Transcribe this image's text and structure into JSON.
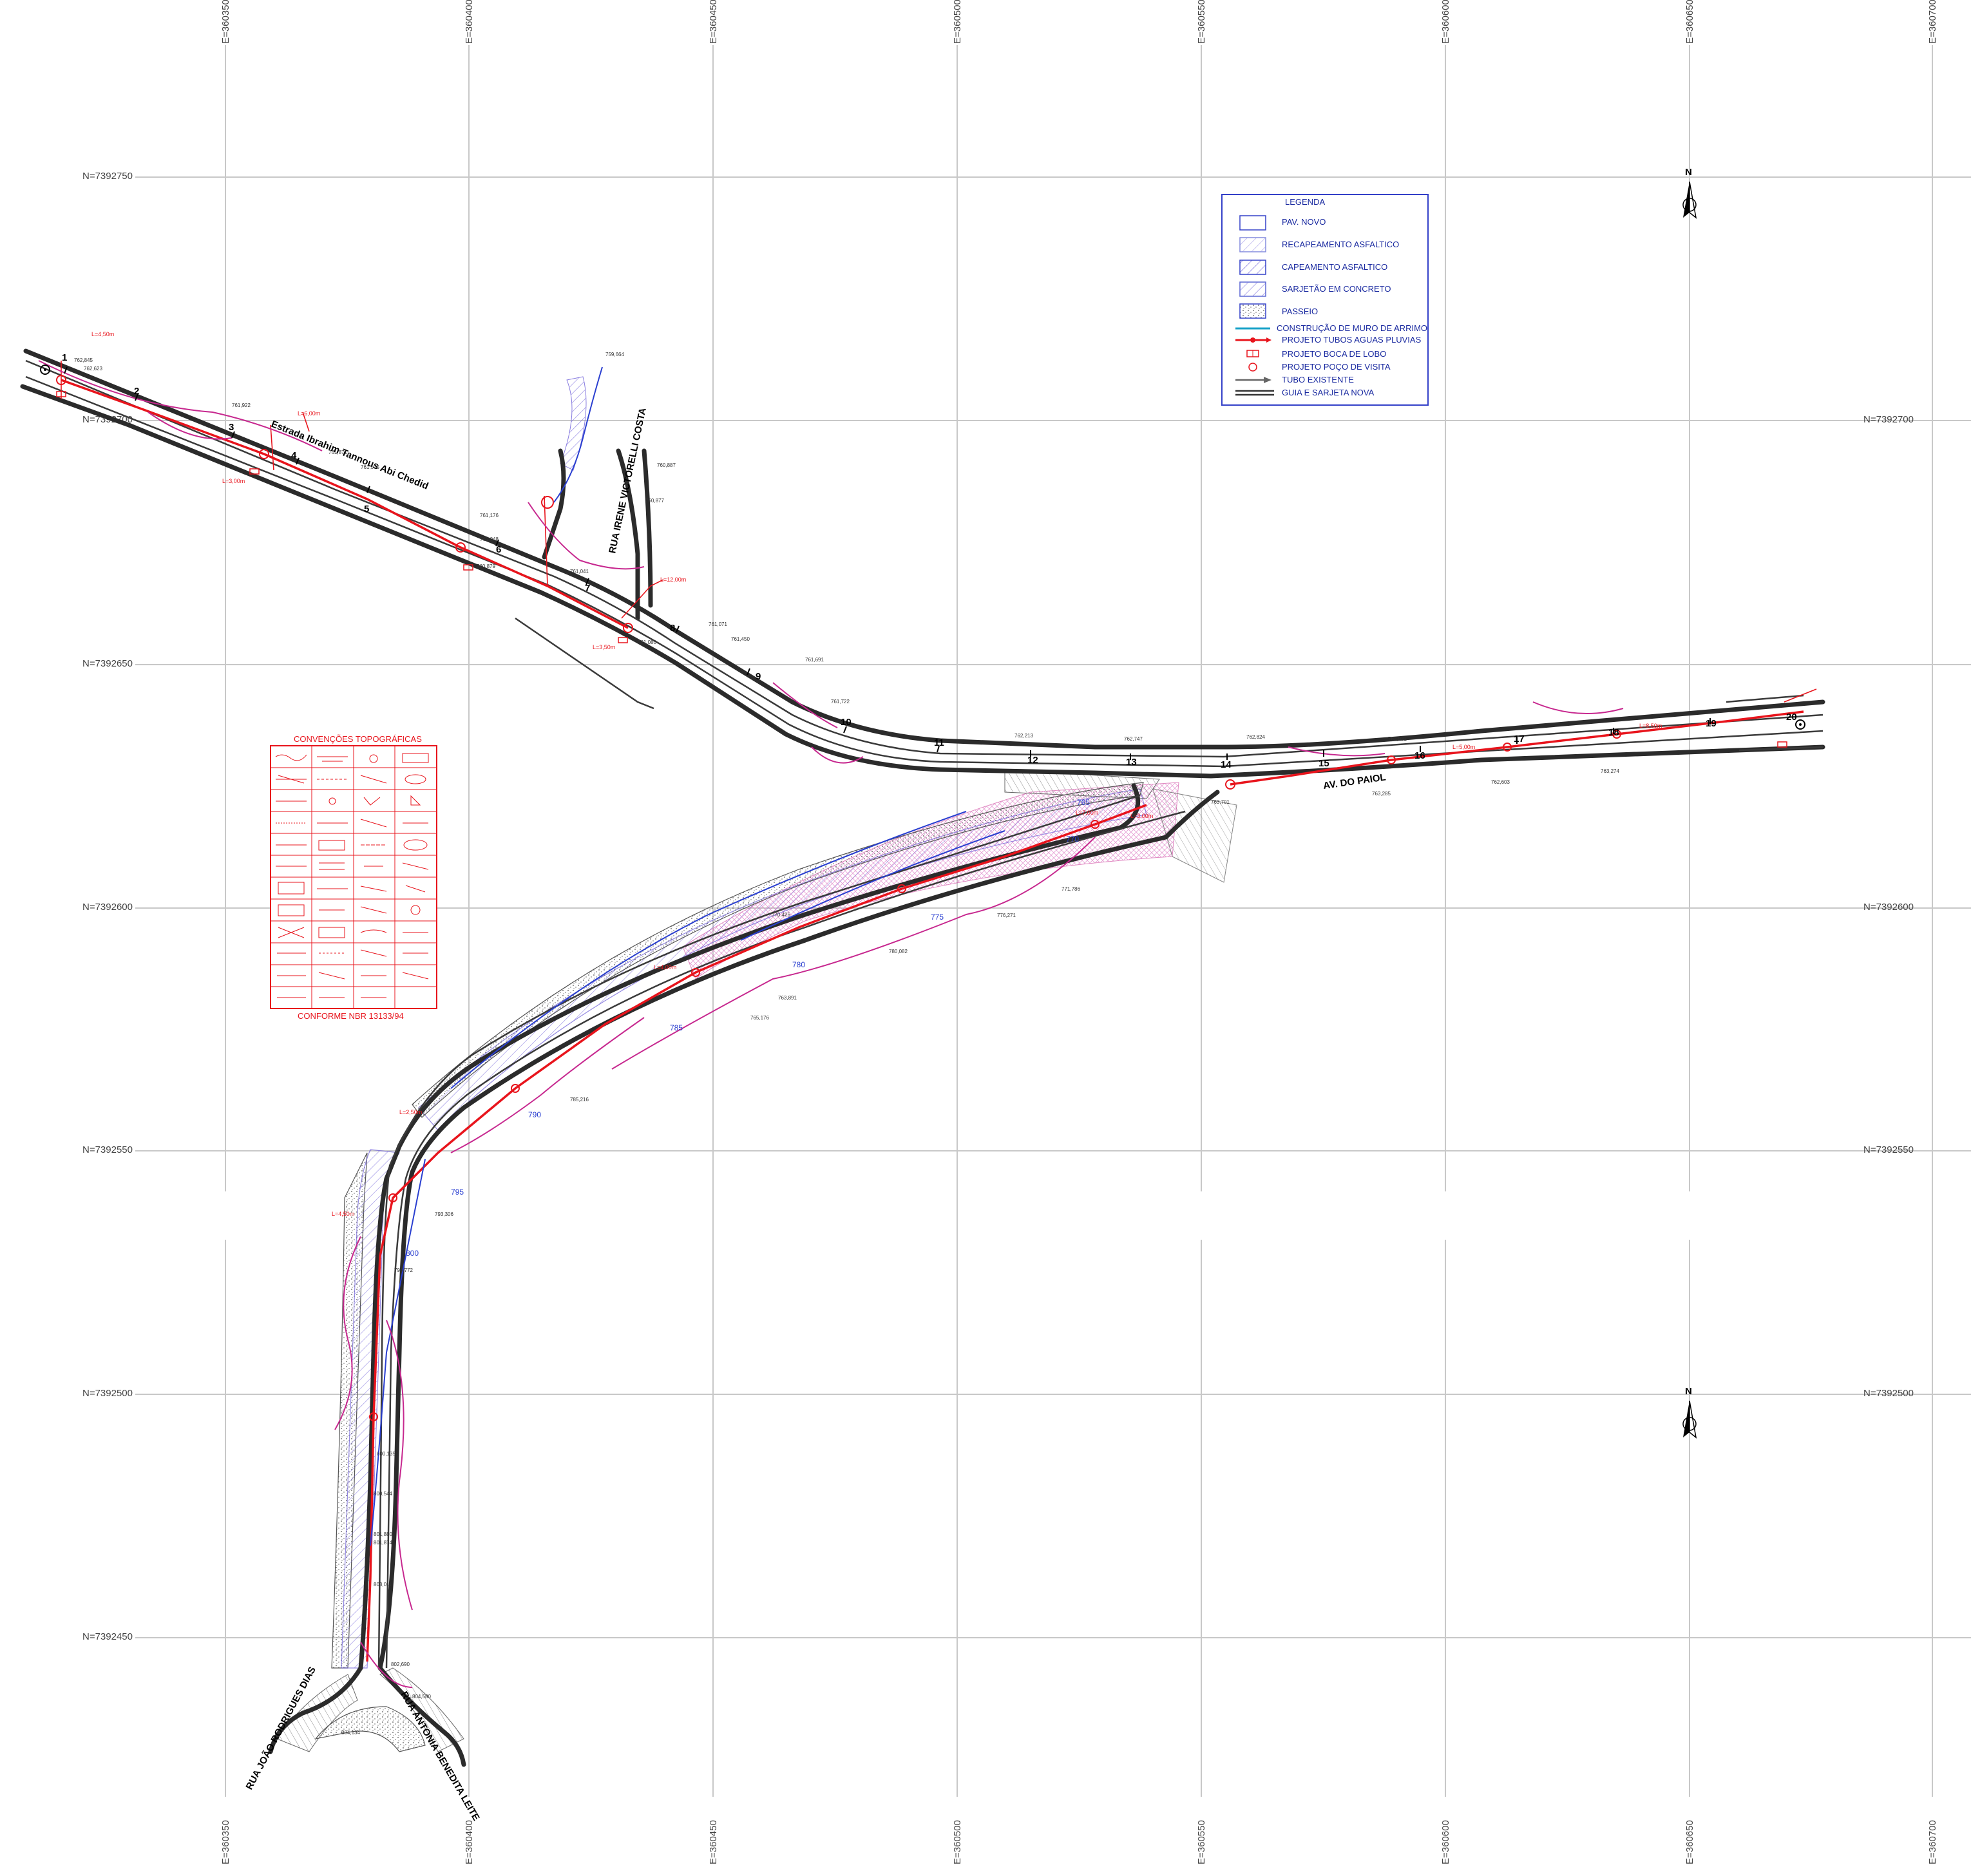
{
  "grid": {
    "easting_labels": [
      "E=360350",
      "E=360400",
      "E=360450",
      "E=360500",
      "E=360550",
      "E=360600",
      "E=360650",
      "E=360700"
    ],
    "northing_labels": [
      "N=7392750",
      "N=7392700",
      "N=7392650",
      "N=7392600",
      "N=7392550",
      "N=7392500",
      "N=7392450"
    ]
  },
  "north_arrow": {
    "label": "N"
  },
  "legend": {
    "title": "LEGENDA",
    "items": [
      {
        "label": "PAV. NOVO",
        "symbol": "box"
      },
      {
        "label": "RECAPEAMENTO ASFALTICO",
        "symbol": "hatch-light"
      },
      {
        "label": "CAPEAMENTO ASFALTICO",
        "symbol": "hatch-dense"
      },
      {
        "label": "SARJETÃO EM CONCRETO",
        "symbol": "hatch-medium"
      },
      {
        "label": "PASSEIO",
        "symbol": "stipple"
      },
      {
        "label": "CONSTRUÇÃO DE MURO DE ARRIMO",
        "symbol": "cyan-line"
      },
      {
        "label": "PROJETO TUBOS AGUAS PLUVIAS",
        "symbol": "red-arrow"
      },
      {
        "label": "PROJETO BOCA DE LOBO",
        "symbol": "red-box"
      },
      {
        "label": "PROJETO POÇO DE VISITA",
        "symbol": "red-circle"
      },
      {
        "label": "TUBO EXISTENTE",
        "symbol": "gray-arrow"
      },
      {
        "label": "GUIA E SARJETA NOVA",
        "symbol": "double-line"
      }
    ]
  },
  "conventions": {
    "title": "CONVENÇÕES TOPOGRÁFICAS",
    "footer": "CONFORME NBR 13133/94"
  },
  "road_names": {
    "estrada": "Estrada Ibrahim Tannous Abi Chedid",
    "irene": "RUA IRENE VICTORELLI COSTA",
    "paiol": "AV. DO PAIOL",
    "joao": "RUA JOÃO RODRIGUES DIAS",
    "antonia": "RUA ANTONIA BENEDITA LEITE"
  },
  "stations": [
    "1",
    "2",
    "3",
    "4",
    "5",
    "6",
    "7",
    "8",
    "9",
    "10",
    "11",
    "12",
    "13",
    "14",
    "15",
    "16",
    "17",
    "18",
    "19",
    "20"
  ],
  "elevations": [
    "759,664",
    "762,845",
    "762,623",
    "761,922",
    "761,871",
    "761,575",
    "761,176",
    "761,048",
    "761,041",
    "760,879",
    "761,080",
    "760,887",
    "760,877",
    "761,071",
    "761,450",
    "761,691",
    "761,722",
    "762,213",
    "762,747",
    "762,824",
    "762,931",
    "763,285",
    "762,603",
    "763,274",
    "763,701",
    "763,891",
    "765,176",
    "770,426",
    "771,786",
    "776,271",
    "780,082",
    "785,216",
    "793,306",
    "796,772",
    "800,135",
    "800,544",
    "801,880",
    "801,874",
    "803,011",
    "802,690",
    "804,580",
    "804,134"
  ],
  "contours": [
    "765",
    "770",
    "775",
    "780",
    "785",
    "790",
    "795",
    "800"
  ],
  "pipe_labels": [
    "L=4,50m",
    "L=6,00m",
    "L=3,00m",
    "L=12,00m",
    "L=3,50m",
    "L=5,00m",
    "L=8,50m",
    "L=7,00m",
    "L=4,00m",
    "L=2,50m"
  ]
}
